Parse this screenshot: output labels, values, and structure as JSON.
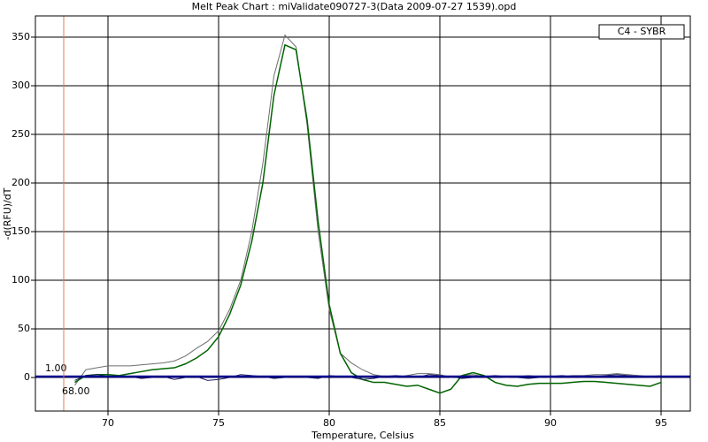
{
  "chart_data": {
    "type": "line",
    "title": "Melt Peak Chart : miValidate090727-3(Data 2009-07-27 1539).opd",
    "x_label": "Temperature, Celsius",
    "y_label": "-d(RFU)/dT",
    "legend": "C4 - SYBR",
    "x": [
      68.5,
      69,
      69.5,
      70,
      70.5,
      71,
      71.5,
      72,
      72.5,
      73,
      73.5,
      74,
      74.5,
      75,
      75.5,
      76,
      76.5,
      77,
      77.5,
      78,
      78.5,
      79,
      79.5,
      80,
      80.5,
      81,
      81.5,
      82,
      82.5,
      83,
      83.5,
      84,
      84.5,
      85,
      85.5,
      86,
      86.5,
      87,
      87.5,
      88,
      88.5,
      89,
      89.5,
      90,
      90.5,
      91,
      91.5,
      92,
      92.5,
      93,
      93.5,
      94,
      94.5,
      95
    ],
    "series": [
      {
        "color": "#6e6e6e",
        "values": [
          -8,
          8,
          10,
          12,
          12,
          12,
          13,
          14,
          15,
          17,
          22,
          30,
          37,
          48,
          70,
          100,
          150,
          220,
          310,
          352,
          340,
          260,
          150,
          70,
          25,
          15,
          8,
          3,
          1,
          0,
          2,
          4,
          4,
          3,
          0,
          2,
          3,
          1,
          1,
          0,
          1,
          2,
          1,
          0,
          1,
          2,
          2,
          3,
          3,
          4,
          3,
          2,
          1,
          2
        ]
      },
      {
        "color": "#006400",
        "values": [
          -5,
          2,
          3,
          3,
          2,
          4,
          6,
          8,
          9,
          10,
          14,
          20,
          28,
          42,
          65,
          95,
          140,
          200,
          290,
          342,
          337,
          265,
          160,
          75,
          25,
          5,
          -2,
          -5,
          -5,
          -7,
          -9,
          -8,
          -12,
          -16,
          -12,
          2,
          5,
          2,
          -5,
          -8,
          -9,
          -7,
          -6,
          -6,
          -6,
          -5,
          -4,
          -4,
          -5,
          -6,
          -7,
          -8,
          -9,
          -5
        ]
      },
      {
        "color": "#202060",
        "values": [
          -3,
          2,
          3,
          1,
          0,
          1,
          -1,
          0,
          1,
          -2,
          0,
          1,
          -3,
          -2,
          0,
          3,
          2,
          1,
          -1,
          0,
          1,
          0,
          -1,
          2,
          1,
          0,
          -2,
          -1,
          1,
          2,
          1,
          0,
          3,
          2,
          1,
          -1,
          0,
          1,
          2,
          1,
          0,
          -1,
          0,
          1,
          2,
          1,
          0,
          1,
          2,
          3,
          2,
          1,
          0,
          1
        ]
      }
    ],
    "xlim": [
      66.72,
      96.32
    ],
    "ylim": [
      -34.5,
      371.8
    ],
    "xticks": [
      70,
      75,
      80,
      85,
      90,
      95
    ],
    "yticks": [
      0,
      50,
      100,
      150,
      200,
      250,
      300,
      350
    ],
    "grid": true,
    "threshold": {
      "value": 1,
      "label": "1.00",
      "color": "#00008b"
    },
    "marker": {
      "value": 68,
      "label": "68.00",
      "color": "#e07a50"
    }
  }
}
